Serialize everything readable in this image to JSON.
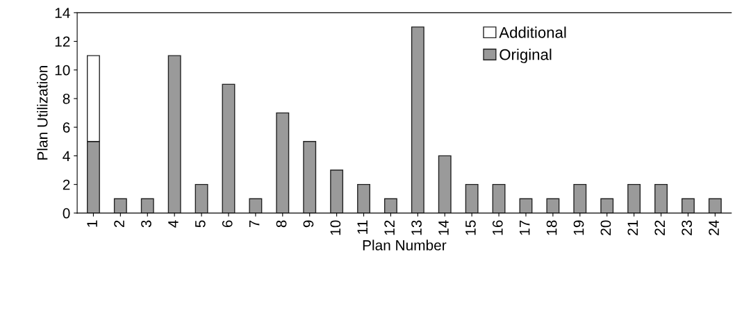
{
  "chart_data": {
    "type": "bar",
    "stacked": true,
    "xlabel": "Plan Number",
    "ylabel": "Plan Utilization",
    "categories": [
      "1",
      "2",
      "3",
      "4",
      "5",
      "6",
      "7",
      "8",
      "9",
      "10",
      "11",
      "12",
      "13",
      "14",
      "15",
      "16",
      "17",
      "18",
      "19",
      "20",
      "21",
      "22",
      "23",
      "24"
    ],
    "series": [
      {
        "name": "Original",
        "color": "#9a9a9a",
        "values": [
          5,
          1,
          1,
          11,
          2,
          9,
          1,
          7,
          5,
          3,
          2,
          1,
          13,
          4,
          2,
          2,
          1,
          1,
          2,
          1,
          2,
          2,
          1,
          1
        ]
      },
      {
        "name": "Additional",
        "color": "#ffffff",
        "values": [
          6,
          0,
          0,
          0,
          0,
          0,
          0,
          0,
          0,
          0,
          0,
          0,
          0,
          0,
          0,
          0,
          0,
          0,
          0,
          0,
          0,
          0,
          0,
          0
        ]
      }
    ],
    "ylim": [
      0,
      14
    ],
    "yticks": [
      0,
      2,
      4,
      6,
      8,
      10,
      12,
      14
    ],
    "grid": false,
    "legend": "top"
  }
}
